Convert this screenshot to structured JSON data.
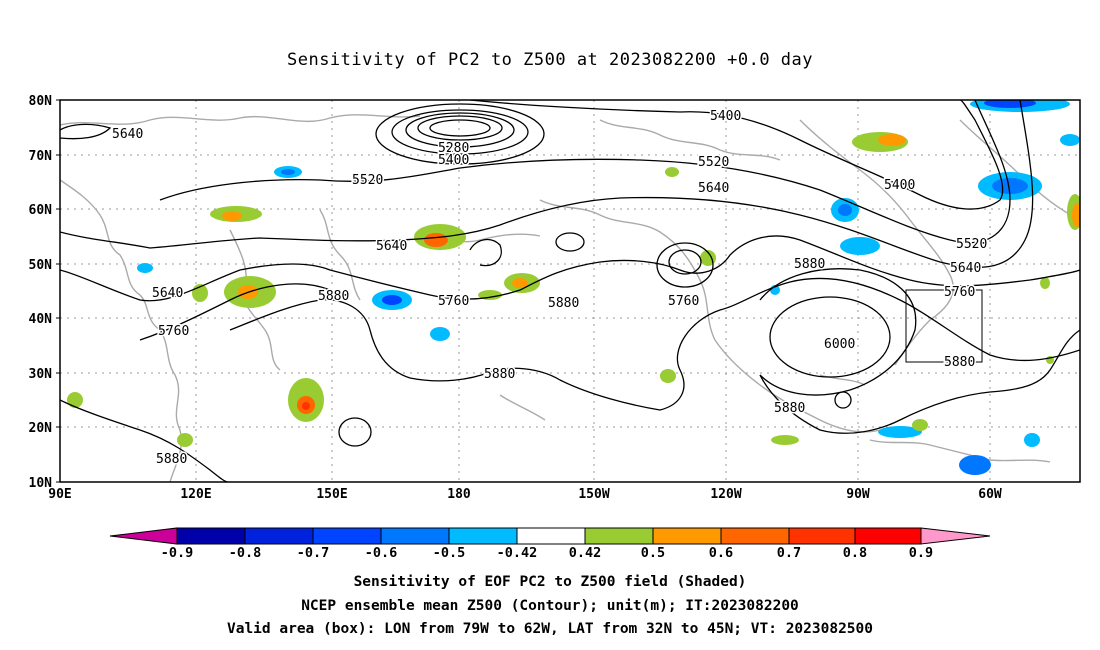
{
  "title": "Sensitivity of PC2 to Z500 at 2023082200 +0.0 day",
  "map": {
    "lat_labels": [
      "80N",
      "70N",
      "60N",
      "50N",
      "40N",
      "30N",
      "20N",
      "10N"
    ],
    "lon_labels": [
      "90E",
      "120E",
      "150E",
      "180",
      "150W",
      "120W",
      "90W",
      "60W"
    ],
    "contour_labels": [
      "5640",
      "5280",
      "5400",
      "5520",
      "5400",
      "5520",
      "5640",
      "5400",
      "5640",
      "5520",
      "5640",
      "5880",
      "5760",
      "5880",
      "5760",
      "6000",
      "5880",
      "5880",
      "5760",
      "5640",
      "5880",
      "5880",
      "5760"
    ],
    "valid_box": {
      "lon_from": "79W",
      "lon_to": "62W",
      "lat_from": "32N",
      "lat_to": "45N"
    }
  },
  "colorbar": {
    "ticks": [
      "-0.9",
      "-0.8",
      "-0.7",
      "-0.6",
      "-0.5",
      "-0.42",
      "0.42",
      "0.5",
      "0.6",
      "0.7",
      "0.8",
      "0.9"
    ],
    "colors": [
      "#cc0099",
      "#0000aa",
      "#0022dd",
      "#0044ff",
      "#0077ff",
      "#00bbff",
      "#ffffff",
      "#99cc33",
      "#ff9900",
      "#ff6600",
      "#ff3300",
      "#ff0000",
      "#ff99cc"
    ]
  },
  "captions": {
    "line1": "Sensitivity of EOF PC2 to Z500 field (Shaded)",
    "line2": "NCEP ensemble mean Z500 (Contour); unit(m); IT:2023082200",
    "line3": "Valid area (box): LON from 79W to 62W, LAT from 32N to 45N; VT: 2023082500"
  }
}
